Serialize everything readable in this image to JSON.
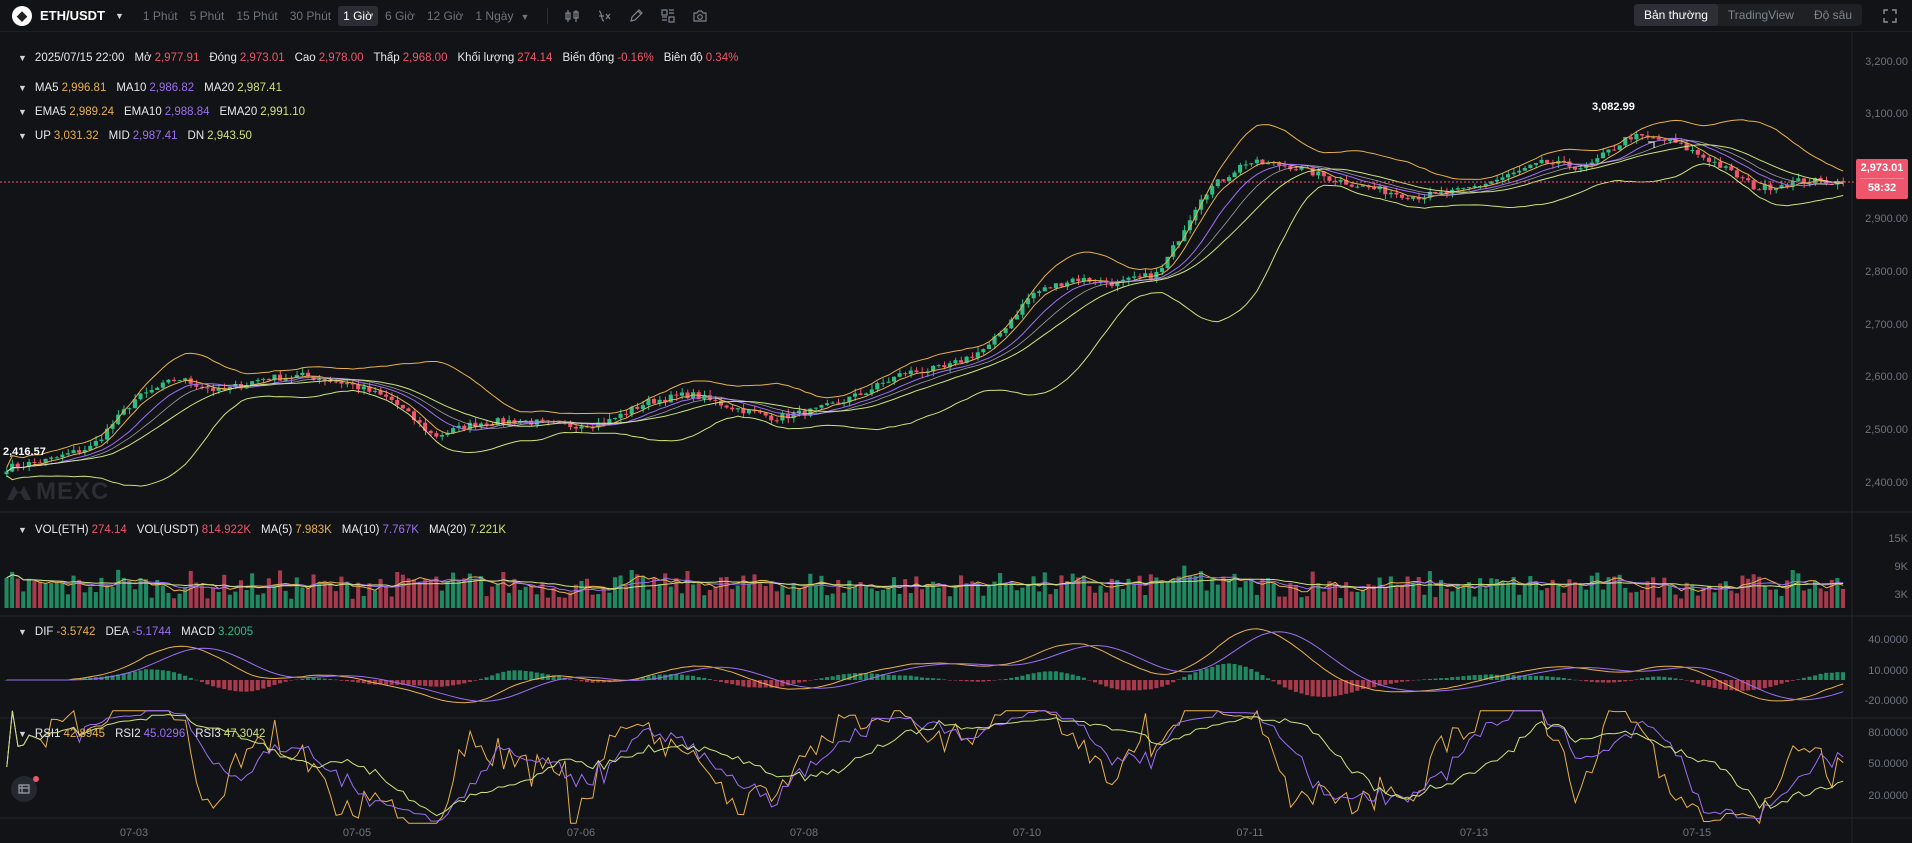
{
  "toolbar": {
    "symbol": "ETH/USDT",
    "intervals": [
      {
        "label": "1 Phút",
        "active": false
      },
      {
        "label": "5 Phút",
        "active": false
      },
      {
        "label": "15 Phút",
        "active": false
      },
      {
        "label": "30 Phút",
        "active": false
      },
      {
        "label": "1 Giờ",
        "active": true
      },
      {
        "label": "6 Giờ",
        "active": false
      },
      {
        "label": "12 Giờ",
        "active": false
      },
      {
        "label": "1 Ngày",
        "active": false
      }
    ],
    "tool_icons": [
      "indicator-icon",
      "formula-icon",
      "draw-pencil-icon",
      "layout-grid-icon",
      "camera-icon"
    ],
    "views": [
      {
        "label": "Bản thường",
        "active": true
      },
      {
        "label": "TradingView",
        "active": false
      },
      {
        "label": "Độ sâu",
        "active": false
      }
    ]
  },
  "legend": {
    "ohlc": {
      "date": "2025/07/15 22:00",
      "open_label": "Mở",
      "open": "2,977.91",
      "close_label": "Đóng",
      "close": "2,973.01",
      "high_label": "Cao",
      "high": "2,978.00",
      "low_label": "Thấp",
      "low": "2,968.00",
      "volume_label": "Khối lượng",
      "volume": "274.14",
      "change_label": "Biến động",
      "change": "-0.16%",
      "amplitude_label": "Biên độ",
      "amplitude": "0.34%"
    },
    "ma": {
      "ma5_label": "MA5",
      "ma5": "2,996.81",
      "ma10_label": "MA10",
      "ma10": "2,986.82",
      "ma20_label": "MA20",
      "ma20": "2,987.41"
    },
    "ema": {
      "ema5_label": "EMA5",
      "ema5": "2,989.24",
      "ema10_label": "EMA10",
      "ema10": "2,988.84",
      "ema20_label": "EMA20",
      "ema20": "2,991.10"
    },
    "boll": {
      "up_label": "UP",
      "up": "3,031.32",
      "mid_label": "MID",
      "mid": "2,987.41",
      "dn_label": "DN",
      "dn": "2,943.50"
    },
    "vol": {
      "eth_label": "VOL(ETH)",
      "eth": "274.14",
      "usdt_label": "VOL(USDT)",
      "usdt": "814.922K",
      "ma5_label": "MA(5)",
      "ma5": "7.983K",
      "ma10_label": "MA(10)",
      "ma10": "7.767K",
      "ma20_label": "MA(20)",
      "ma20": "7.221K"
    },
    "macd": {
      "dif_label": "DIF",
      "dif": "-3.5742",
      "dea_label": "DEA",
      "dea": "-5.1744",
      "macd_label": "MACD",
      "macd": "3.2005"
    },
    "rsi": {
      "rsi1_label": "RSI1",
      "rsi1": "42.8945",
      "rsi2_label": "RSI2",
      "rsi2": "45.0296",
      "rsi3_label": "RSI3",
      "rsi3": "47.3042"
    }
  },
  "watermark": "MEXC",
  "low_marker": "2,416.57",
  "high_marker": "3,082.99",
  "last_price": "2,973.01",
  "countdown": "58:32",
  "price_axis": [
    "3,200.00",
    "3,100.00",
    "3,000.00",
    "2,900.00",
    "2,800.00",
    "2,700.00",
    "2,600.00",
    "2,500.00",
    "2,400.00"
  ],
  "volume_axis": [
    "15K",
    "9K",
    "3K"
  ],
  "macd_axis": [
    "40.0000",
    "10.0000",
    "-20.0000"
  ],
  "rsi_axis": [
    "80.0000",
    "50.0000",
    "20.0000"
  ],
  "date_axis": [
    "07-03",
    "07-05",
    "07-06",
    "07-08",
    "07-10",
    "07-11",
    "07-13",
    "07-15"
  ],
  "colors": {
    "up": "#2ebd85",
    "down": "#f0556e",
    "ma5": "#e8b14c",
    "ma10": "#9b6ff2",
    "ma20": "#cde37a",
    "background": "#121316"
  },
  "chart_data": {
    "type": "candlestick",
    "symbol": "ETH/USDT",
    "interval": "1 Giờ",
    "ylim": [
      2350,
      3220
    ],
    "price_anchors": [
      {
        "date": "07-02",
        "price": 2430
      },
      {
        "date": "07-02",
        "price": 2445
      },
      {
        "date": "07-02",
        "price": 2470
      },
      {
        "date": "07-02",
        "price": 2560
      },
      {
        "date": "07-03",
        "price": 2600
      },
      {
        "date": "07-03",
        "price": 2575
      },
      {
        "date": "07-03",
        "price": 2600
      },
      {
        "date": "07-04",
        "price": 2605
      },
      {
        "date": "07-04",
        "price": 2590
      },
      {
        "date": "07-04",
        "price": 2560
      },
      {
        "date": "07-05",
        "price": 2490
      },
      {
        "date": "07-05",
        "price": 2515
      },
      {
        "date": "07-05",
        "price": 2520
      },
      {
        "date": "07-06",
        "price": 2510
      },
      {
        "date": "07-06",
        "price": 2515
      },
      {
        "date": "07-06",
        "price": 2555
      },
      {
        "date": "07-07",
        "price": 2570
      },
      {
        "date": "07-07",
        "price": 2545
      },
      {
        "date": "07-07",
        "price": 2525
      },
      {
        "date": "07-08",
        "price": 2540
      },
      {
        "date": "07-08",
        "price": 2570
      },
      {
        "date": "07-08",
        "price": 2610
      },
      {
        "date": "07-09",
        "price": 2620
      },
      {
        "date": "07-09",
        "price": 2660
      },
      {
        "date": "07-09",
        "price": 2760
      },
      {
        "date": "07-10",
        "price": 2790
      },
      {
        "date": "07-10",
        "price": 2780
      },
      {
        "date": "07-10",
        "price": 2800
      },
      {
        "date": "07-10",
        "price": 2950
      },
      {
        "date": "07-11",
        "price": 3010
      },
      {
        "date": "07-11",
        "price": 3005
      },
      {
        "date": "07-11",
        "price": 2980
      },
      {
        "date": "07-12",
        "price": 2960
      },
      {
        "date": "07-12",
        "price": 2945
      },
      {
        "date": "07-12",
        "price": 2955
      },
      {
        "date": "07-13",
        "price": 2980
      },
      {
        "date": "07-13",
        "price": 3010
      },
      {
        "date": "07-14",
        "price": 3000
      },
      {
        "date": "07-14",
        "price": 3060
      },
      {
        "date": "07-14",
        "price": 3050
      },
      {
        "date": "07-14",
        "price": 3010
      },
      {
        "date": "07-15",
        "price": 2960
      },
      {
        "date": "07-15",
        "price": 2975
      },
      {
        "date": "07-15",
        "price": 2973
      }
    ],
    "period_low": 2416.57,
    "period_high": 3082.99,
    "last_close": 2973.01,
    "volume_range": [
      0,
      18000
    ],
    "macd_range": [
      -30,
      58
    ],
    "rsi_range": [
      10,
      90
    ]
  }
}
